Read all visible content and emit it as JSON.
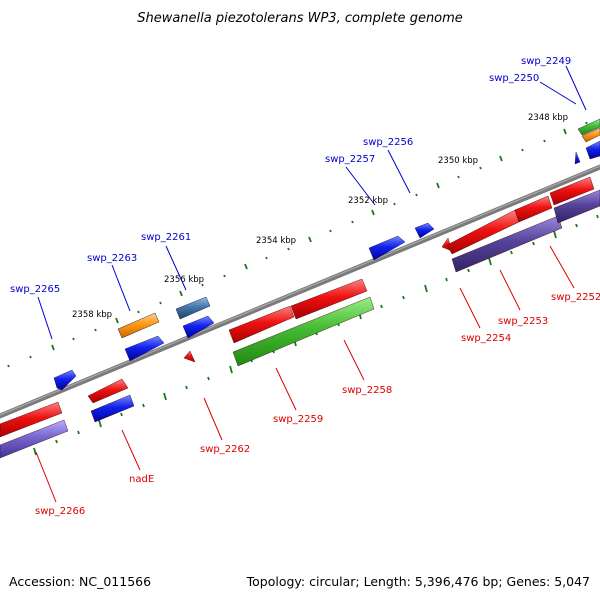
{
  "title": "Shewanella piezotolerans WP3, complete genome",
  "footer": {
    "accession": "Accession: NC_011566",
    "summary": "Topology: circular; Length: 5,396,476 bp; Genes: 5,047"
  },
  "colors": {
    "backbone": "#7a7a7a",
    "tick": "#1a7a1a",
    "forward_label": "#0000cc",
    "reverse_label": "#dd0000",
    "cds": "#ee1111",
    "rna": "#44bb33",
    "cog_blue": "#1122ee",
    "cog_orange": "#ff9911",
    "cog_steel": "#4477aa",
    "cog_purple": "#554499"
  },
  "scale_labels": [
    "2348 kbp",
    "2350 kbp",
    "2352 kbp",
    "2354 kbp",
    "2356 kbp",
    "2358 kbp"
  ],
  "forward_genes": [
    "swp_2249",
    "swp_2250",
    "swp_2256",
    "swp_2257",
    "swp_2261",
    "swp_2263",
    "swp_2265"
  ],
  "reverse_genes": [
    "swp_2252",
    "swp_2253",
    "swp_2254",
    "swp_2258",
    "swp_2259",
    "swp_2262",
    "nadE",
    "swp_2266"
  ]
}
